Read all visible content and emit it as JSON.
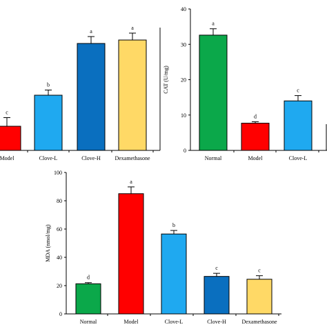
{
  "chart_data": [
    {
      "type": "bar",
      "categories": [
        "Model",
        "Clove-L",
        "Clove-H",
        "Dexamethasone"
      ],
      "values": [
        7,
        16,
        31,
        32
      ],
      "errors": [
        2.5,
        1.5,
        2.0,
        2.0
      ],
      "significance": [
        "c",
        "b",
        "a",
        "a"
      ],
      "colors": [
        "#ff0000",
        "#1fa9f0",
        "#0a6fbf",
        "#ffd966"
      ],
      "ylim": [
        0,
        40
      ]
    },
    {
      "type": "bar",
      "categories": [
        "Normal",
        "Model",
        "Clove-L"
      ],
      "values": [
        32.6,
        7.7,
        14.0
      ],
      "errors": [
        1.8,
        0.4,
        1.5
      ],
      "significance": [
        "a",
        "d",
        "c"
      ],
      "colors": [
        "#0ba84a",
        "#ff0000",
        "#1fa9f0"
      ],
      "ylabel": "CAT (U/mg)",
      "ylim": [
        0,
        40
      ],
      "yticks": [
        0,
        10,
        20,
        30,
        40
      ]
    },
    {
      "type": "bar",
      "categories": [
        "Normal",
        "Model",
        "Clove-L",
        "Clove-H",
        "Dexamethasone"
      ],
      "values": [
        21.3,
        85.0,
        56.5,
        26.5,
        24.5
      ],
      "errors": [
        0.8,
        4.8,
        2.5,
        2.2,
        2.5
      ],
      "significance": [
        "d",
        "a",
        "b",
        "c",
        "c"
      ],
      "colors": [
        "#0ba84a",
        "#ff0000",
        "#1fa9f0",
        "#0a6fbf",
        "#ffd966"
      ],
      "ylabel": "MDA (nmol/mg)",
      "ylim": [
        0,
        100
      ],
      "yticks": [
        0,
        20,
        40,
        60,
        80,
        100
      ]
    }
  ]
}
